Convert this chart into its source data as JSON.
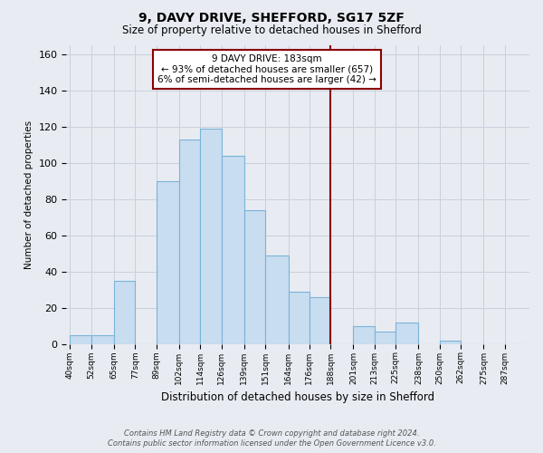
{
  "title": "9, DAVY DRIVE, SHEFFORD, SG17 5ZF",
  "subtitle": "Size of property relative to detached houses in Shefford",
  "xlabel": "Distribution of detached houses by size in Shefford",
  "ylabel": "Number of detached properties",
  "bin_labels": [
    "40sqm",
    "52sqm",
    "65sqm",
    "77sqm",
    "89sqm",
    "102sqm",
    "114sqm",
    "126sqm",
    "139sqm",
    "151sqm",
    "164sqm",
    "176sqm",
    "188sqm",
    "201sqm",
    "213sqm",
    "225sqm",
    "238sqm",
    "250sqm",
    "262sqm",
    "275sqm",
    "287sqm"
  ],
  "bar_heights": [
    5,
    5,
    35,
    0,
    90,
    113,
    119,
    104,
    74,
    49,
    29,
    26,
    0,
    10,
    7,
    12,
    0,
    2,
    0,
    0,
    0
  ],
  "bar_color": "#c9ddf0",
  "bar_edge_color": "#7ab3d9",
  "vline_color": "#8b0000",
  "annotation_text": "9 DAVY DRIVE: 183sqm\n← 93% of detached houses are smaller (657)\n6% of semi-detached houses are larger (42) →",
  "annotation_box_color": "#ffffff",
  "annotation_box_edge": "#8b0000",
  "ylim": [
    0,
    165
  ],
  "yticks": [
    0,
    20,
    40,
    60,
    80,
    100,
    120,
    140,
    160
  ],
  "grid_color": "#c8d0dc",
  "bg_color": "#e8ecf2",
  "footer_line1": "Contains HM Land Registry data © Crown copyright and database right 2024.",
  "footer_line2": "Contains public sector information licensed under the Open Government Licence v3.0.",
  "bin_edges": [
    40,
    52,
    65,
    77,
    89,
    102,
    114,
    126,
    139,
    151,
    164,
    176,
    188,
    201,
    213,
    225,
    238,
    250,
    262,
    275,
    287,
    299
  ],
  "vline_bin_edge": 188
}
